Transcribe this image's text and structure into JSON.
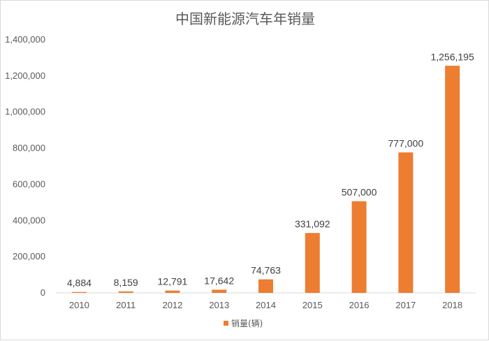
{
  "chart_data": {
    "type": "bar",
    "title": "中国新能源汽车年销量",
    "categories": [
      "2010",
      "2011",
      "2012",
      "2013",
      "2014",
      "2015",
      "2016",
      "2017",
      "2018"
    ],
    "series": [
      {
        "name": "销量(辆)",
        "color": "#ed7d31",
        "values": [
          4884,
          8159,
          12791,
          17642,
          74763,
          331092,
          507000,
          777000,
          1256195
        ],
        "labels": [
          "4,884",
          "8,159",
          "12,791",
          "17,642",
          "74,763",
          "331,092",
          "507,000",
          "777,000",
          "1,256,195"
        ]
      }
    ],
    "ylim": [
      0,
      1400000
    ],
    "yticks": [
      0,
      200000,
      400000,
      600000,
      800000,
      1000000,
      1200000,
      1400000
    ],
    "ytick_labels": [
      "0",
      "200,000",
      "400,000",
      "600,000",
      "800,000",
      "1,000,000",
      "1,200,000",
      "1,400,000"
    ],
    "grid": false,
    "legend_position": "bottom"
  }
}
